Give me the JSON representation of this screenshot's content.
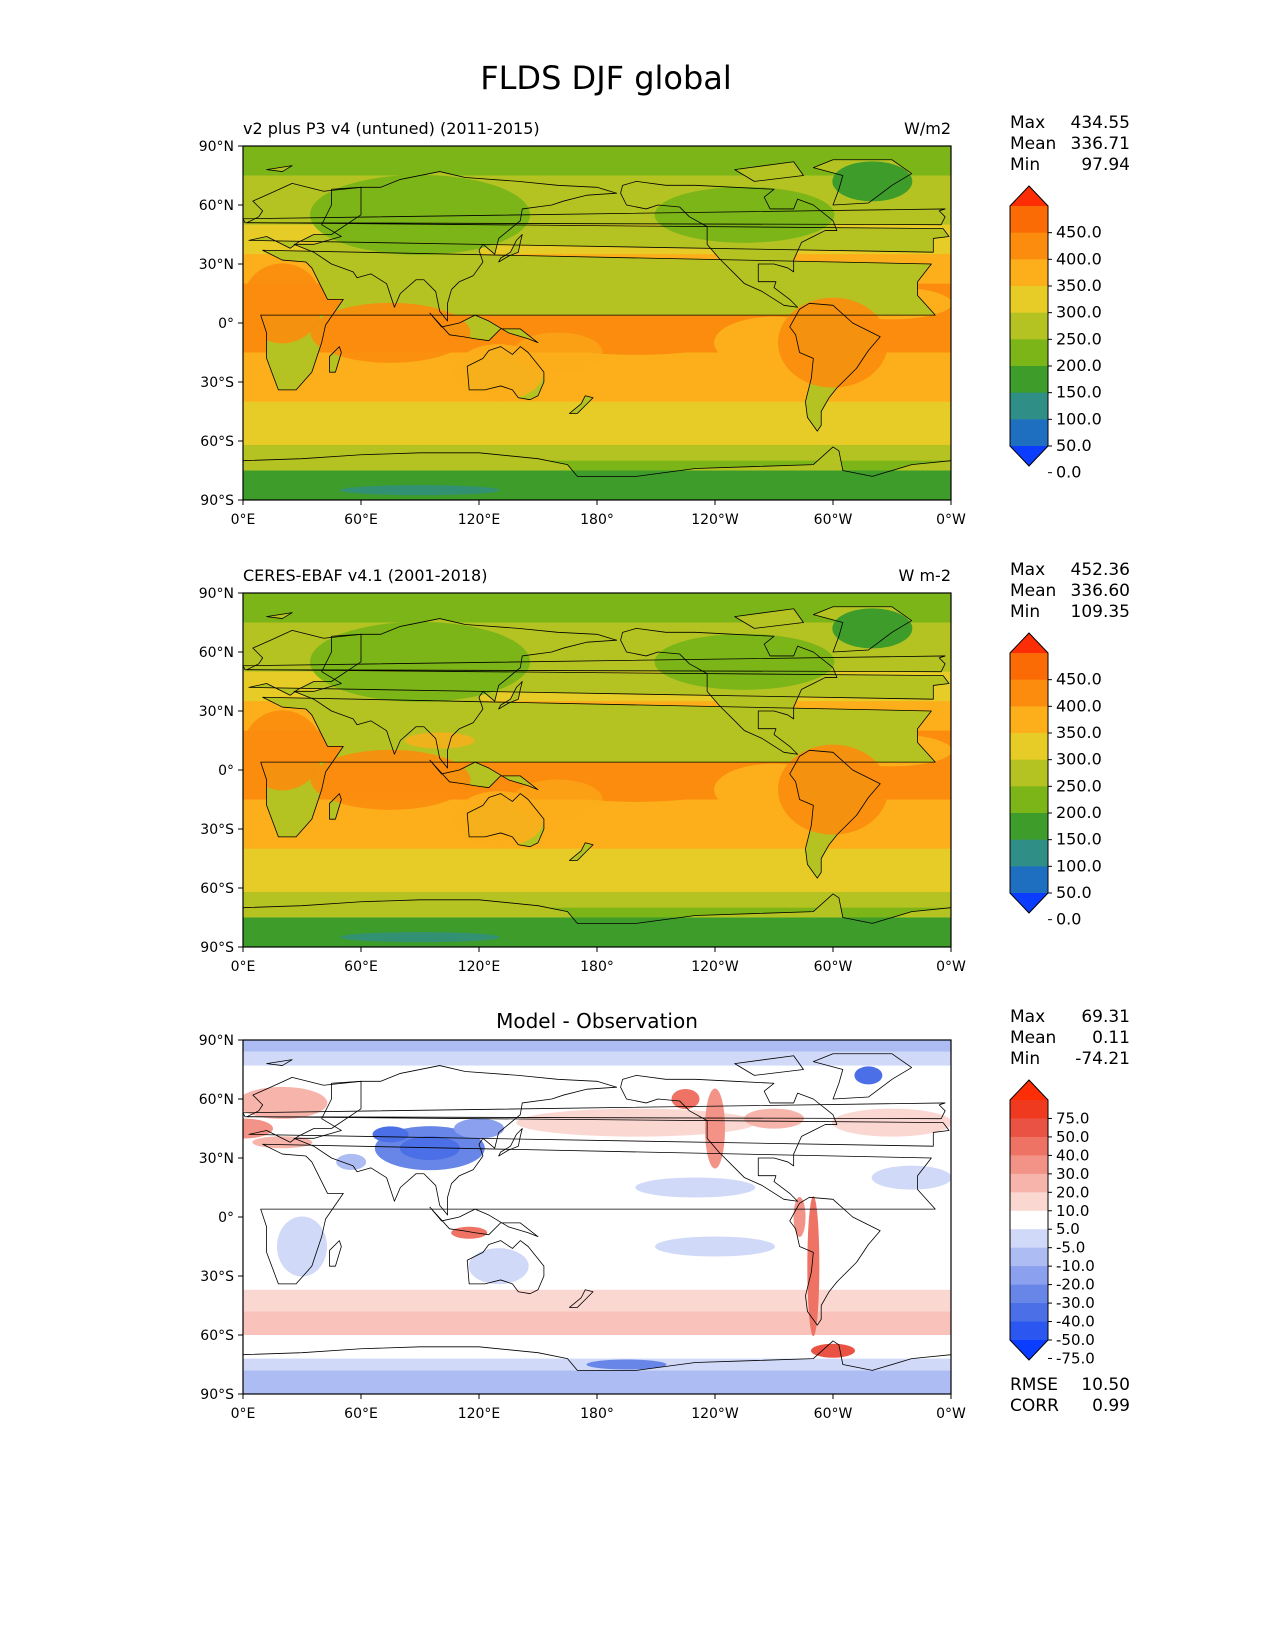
{
  "figure": {
    "title": "FLDS DJF global"
  },
  "panels": [
    {
      "left_title": "v2 plus P3 v4 (untuned) (2011-2015)",
      "center_title": "",
      "units": "W/m2",
      "stats": [
        {
          "label": "Max",
          "value": "434.55"
        },
        {
          "label": "Mean",
          "value": "336.71"
        },
        {
          "label": "Min",
          "value": "97.94"
        }
      ],
      "colorbar": {
        "labels": [
          "450.0",
          "400.0",
          "350.0",
          "300.0",
          "250.0",
          "200.0",
          "150.0",
          "100.0",
          "50.0",
          "0.0"
        ],
        "colors": [
          "#0a3dff",
          "#1f6fc0",
          "#2f8f86",
          "#3d9c2a",
          "#7cb518",
          "#b5c322",
          "#e7cc27",
          "#fcae1b",
          "#fb8c0d",
          "#fa6b05",
          "#fd2d05"
        ]
      },
      "map_type": "abs",
      "extra_stats": []
    },
    {
      "left_title": "CERES-EBAF v4.1 (2001-2018)",
      "center_title": "",
      "units": "W m-2",
      "stats": [
        {
          "label": "Max",
          "value": "452.36"
        },
        {
          "label": "Mean",
          "value": "336.60"
        },
        {
          "label": "Min",
          "value": "109.35"
        }
      ],
      "colorbar": {
        "labels": [
          "450.0",
          "400.0",
          "350.0",
          "300.0",
          "250.0",
          "200.0",
          "150.0",
          "100.0",
          "50.0",
          "0.0"
        ],
        "colors": [
          "#0a3dff",
          "#1f6fc0",
          "#2f8f86",
          "#3d9c2a",
          "#7cb518",
          "#b5c322",
          "#e7cc27",
          "#fcae1b",
          "#fb8c0d",
          "#fa6b05",
          "#fd2d05"
        ]
      },
      "map_type": "abs",
      "extra_stats": []
    },
    {
      "left_title": "",
      "center_title": "Model - Observation",
      "units": "",
      "stats": [
        {
          "label": "Max",
          "value": "69.31"
        },
        {
          "label": "Mean",
          "value": "0.11"
        },
        {
          "label": "Min",
          "value": "-74.21"
        }
      ],
      "colorbar": {
        "labels": [
          "75.0",
          "50.0",
          "40.0",
          "30.0",
          "20.0",
          "10.0",
          "5.0",
          "-5.0",
          "-10.0",
          "-20.0",
          "-30.0",
          "-40.0",
          "-50.0",
          "-75.0"
        ],
        "colors": [
          "#0a3dff",
          "#2c56f0",
          "#4a6fe6",
          "#6886e8",
          "#8ba0ee",
          "#adbcf3",
          "#d0d9f8",
          "#ffffff",
          "#fbd7d2",
          "#f7b4ab",
          "#f39387",
          "#ee7364",
          "#ea5243",
          "#f03a1f",
          "#fd2d05"
        ]
      },
      "map_type": "diff",
      "extra_stats": [
        {
          "label": "RMSE",
          "value": "10.50"
        },
        {
          "label": "CORR",
          "value": "0.99"
        }
      ]
    }
  ],
  "axes": {
    "y_ticks": [
      "90°N",
      "60°N",
      "30°N",
      "0°",
      "30°S",
      "60°S",
      "90°S"
    ],
    "x_ticks": [
      "0°E",
      "60°E",
      "120°E",
      "180°",
      "120°W",
      "60°W",
      "0°W"
    ]
  },
  "chart_data": [
    {
      "type": "heatmap",
      "title": "v2 plus P3 v4 (untuned) (2011-2015)",
      "units": "W/m2",
      "xlabel": "",
      "ylabel": "",
      "xlim": [
        0,
        360
      ],
      "ylim": [
        -90,
        90
      ],
      "x_ticks": [
        "0°E",
        "60°E",
        "120°E",
        "180°",
        "120°W",
        "60°W",
        "0°W"
      ],
      "y_ticks": [
        "90°N",
        "60°N",
        "30°N",
        "0°",
        "30°S",
        "60°S",
        "90°S"
      ],
      "levels": [
        0,
        50,
        100,
        150,
        200,
        250,
        300,
        350,
        400,
        450
      ],
      "summary": {
        "max": 434.55,
        "mean": 336.71,
        "min": 97.94
      }
    },
    {
      "type": "heatmap",
      "title": "CERES-EBAF v4.1 (2001-2018)",
      "units": "W m-2",
      "xlabel": "",
      "ylabel": "",
      "xlim": [
        0,
        360
      ],
      "ylim": [
        -90,
        90
      ],
      "x_ticks": [
        "0°E",
        "60°E",
        "120°E",
        "180°",
        "120°W",
        "60°W",
        "0°W"
      ],
      "y_ticks": [
        "90°N",
        "60°N",
        "30°N",
        "0°",
        "30°S",
        "60°S",
        "90°S"
      ],
      "levels": [
        0,
        50,
        100,
        150,
        200,
        250,
        300,
        350,
        400,
        450
      ],
      "summary": {
        "max": 452.36,
        "mean": 336.6,
        "min": 109.35
      }
    },
    {
      "type": "heatmap",
      "title": "Model - Observation",
      "units": "",
      "xlabel": "",
      "ylabel": "",
      "xlim": [
        0,
        360
      ],
      "ylim": [
        -90,
        90
      ],
      "x_ticks": [
        "0°E",
        "60°E",
        "120°E",
        "180°",
        "120°W",
        "60°W",
        "0°W"
      ],
      "y_ticks": [
        "90°N",
        "60°N",
        "30°N",
        "0°",
        "30°S",
        "60°S",
        "90°S"
      ],
      "levels": [
        -75,
        -50,
        -40,
        -30,
        -20,
        -10,
        -5,
        5,
        10,
        20,
        30,
        40,
        50,
        75
      ],
      "summary": {
        "max": 69.31,
        "mean": 0.11,
        "min": -74.21,
        "rmse": 10.5,
        "corr": 0.99
      }
    }
  ]
}
